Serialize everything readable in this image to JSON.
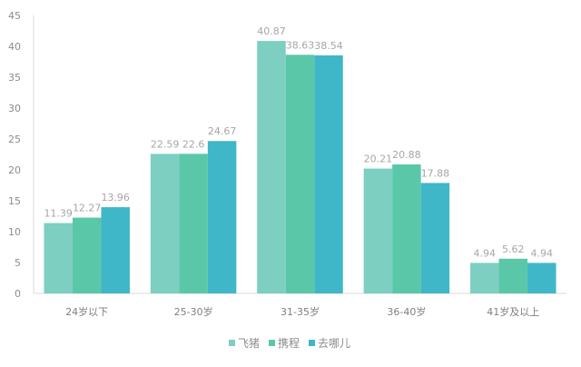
{
  "chart_data": {
    "type": "bar",
    "title": "",
    "xlabel": "",
    "ylabel": "",
    "categories": [
      "24岁以下",
      "25-30岁",
      "31-35岁",
      "36-40岁",
      "41岁及以上"
    ],
    "series": [
      {
        "name": "飞猪",
        "color": "#7ccfc1",
        "values": [
          11.39,
          22.59,
          40.87,
          20.21,
          4.94
        ]
      },
      {
        "name": "携程",
        "color": "#5bc7a9",
        "values": [
          12.27,
          22.6,
          38.63,
          20.88,
          5.62
        ]
      },
      {
        "name": "去哪儿",
        "color": "#3fb7c8",
        "values": [
          13.96,
          24.67,
          38.54,
          17.88,
          4.94
        ]
      }
    ],
    "ylim": [
      0,
      45
    ],
    "yticks": [
      0,
      5,
      10,
      15,
      20,
      25,
      30,
      35,
      40,
      45
    ],
    "grid": false,
    "legend": "bottom",
    "data_labels": true
  }
}
